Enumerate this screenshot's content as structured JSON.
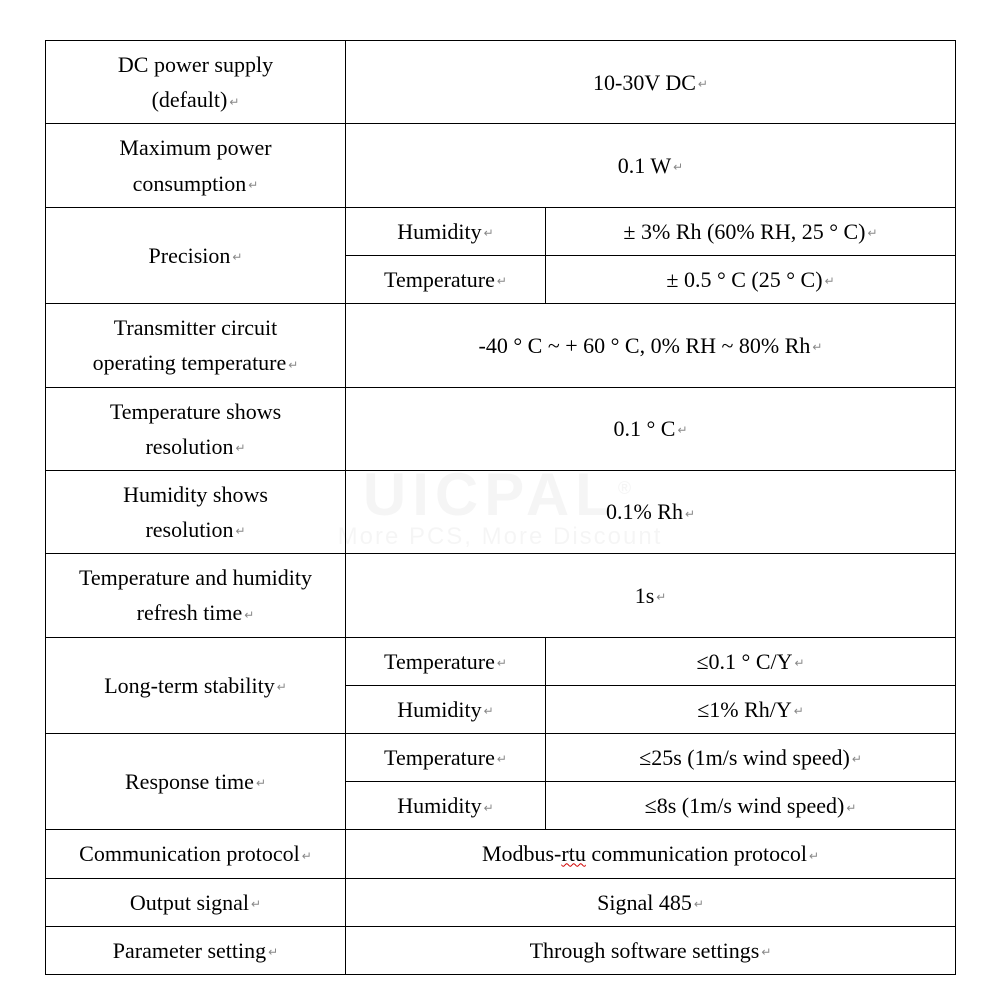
{
  "watermark": {
    "line1": "UICPAL",
    "line2": "More PCS, More Discount"
  },
  "rows": {
    "dc_power": {
      "label_l1": "DC power supply",
      "label_l2": "(default)",
      "value": "10-30V DC"
    },
    "max_power": {
      "label_l1": "Maximum power",
      "label_l2": "consumption",
      "value": "0.1 W"
    },
    "precision": {
      "label": "Precision",
      "hum_label": "Humidity",
      "hum_value": "± 3% Rh (60% RH, 25 ° C)",
      "tmp_label": "Temperature",
      "tmp_value": "± 0.5 ° C (25 ° C)"
    },
    "circuit_temp": {
      "label_l1": "Transmitter circuit",
      "label_l2": "operating temperature",
      "value": "-40 ° C ~ + 60 ° C, 0% RH ~ 80% Rh"
    },
    "temp_res": {
      "label_l1": "Temperature shows",
      "label_l2": "resolution",
      "value": "0.1 ° C"
    },
    "hum_res": {
      "label_l1": "Humidity shows",
      "label_l2": "resolution",
      "value": "0.1% Rh"
    },
    "refresh": {
      "label_l1": "Temperature and humidity",
      "label_l2": "refresh time",
      "value": "1s"
    },
    "stability": {
      "label": "Long-term stability",
      "tmp_label": "Temperature",
      "tmp_value": "≤0.1 ° C/Y",
      "hum_label": "Humidity",
      "hum_value": "≤1% Rh/Y"
    },
    "response": {
      "label": "Response time",
      "tmp_label": "Temperature",
      "tmp_value": "≤25s (1m/s wind speed)",
      "hum_label": "Humidity",
      "hum_value": "≤8s (1m/s wind speed)"
    },
    "protocol": {
      "label": "Communication protocol",
      "value_pre": "Modbus-",
      "value_squiggle": "rtu",
      "value_post": " communication protocol"
    },
    "output": {
      "label": "Output signal",
      "value": "Signal 485"
    },
    "param": {
      "label": "Parameter setting",
      "value": "Through software settings"
    }
  }
}
